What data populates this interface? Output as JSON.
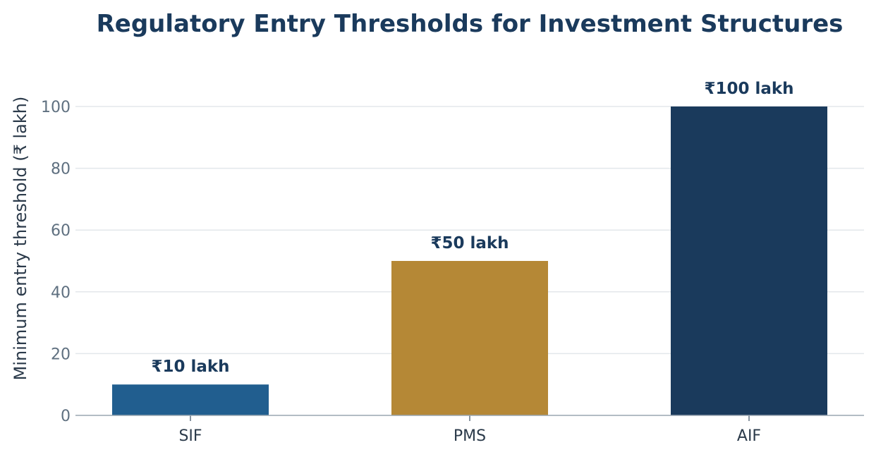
{
  "chart_data": {
    "type": "bar",
    "title": "Regulatory Entry Thresholds for Investment Structures",
    "xlabel": "",
    "ylabel": "Minimum entry threshold (₹ lakh)",
    "categories": [
      "SIF",
      "PMS",
      "AIF"
    ],
    "values": [
      10,
      50,
      100
    ],
    "data_labels": [
      "₹10 lakh",
      "₹50 lakh",
      "₹100 lakh"
    ],
    "colors": [
      "#215e8f",
      "#b58836",
      "#1a3a5c"
    ],
    "ylim": [
      0,
      100
    ],
    "yticks": [
      0,
      20,
      40,
      60,
      80,
      100
    ],
    "ytick_labels": [
      "0",
      "20",
      "40",
      "60",
      "80",
      "100"
    ],
    "grid": true,
    "legend": "none"
  }
}
